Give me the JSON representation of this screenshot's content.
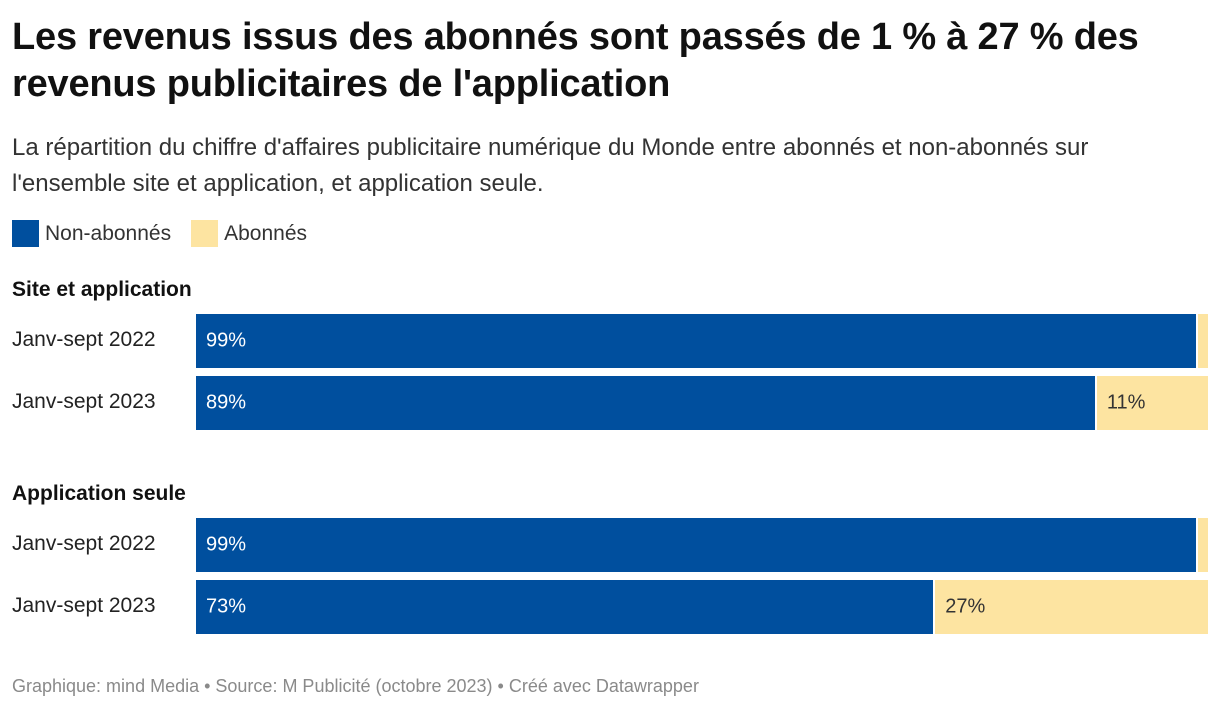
{
  "header": {
    "title": "Les revenus issus des abonnés sont passés de 1 % à 27 % des revenus publicitaires de l'application",
    "subtitle": "La répartition du chiffre d'affaires publicitaire numérique du Monde entre abonnés et non-abonnés sur l'ensemble site et application, et application seule."
  },
  "colors": {
    "non_subscribers": "#004f9e",
    "subscribers": "#fde4a1",
    "label_dark": "#333333",
    "label_light": "#ffffff"
  },
  "footer": {
    "text": "Graphique: mind Media • Source: M Publicité (octobre 2023) • Créé avec Datawrapper"
  },
  "chart_data": {
    "type": "bar",
    "orientation": "horizontal-stacked-100",
    "legend": [
      "Non-abonnés",
      "Abonnés"
    ],
    "groups": [
      {
        "name": "Site et application",
        "rows": [
          {
            "label": "Janv-sept 2022",
            "non_abonnes": 99,
            "abonnes": 1,
            "non_abonnes_label": "99%",
            "abonnes_label": ""
          },
          {
            "label": "Janv-sept 2023",
            "non_abonnes": 89,
            "abonnes": 11,
            "non_abonnes_label": "89%",
            "abonnes_label": "11%"
          }
        ]
      },
      {
        "name": "Application seule",
        "rows": [
          {
            "label": "Janv-sept 2022",
            "non_abonnes": 99,
            "abonnes": 1,
            "non_abonnes_label": "99%",
            "abonnes_label": ""
          },
          {
            "label": "Janv-sept 2023",
            "non_abonnes": 73,
            "abonnes": 27,
            "non_abonnes_label": "73%",
            "abonnes_label": "27%"
          }
        ]
      }
    ]
  }
}
